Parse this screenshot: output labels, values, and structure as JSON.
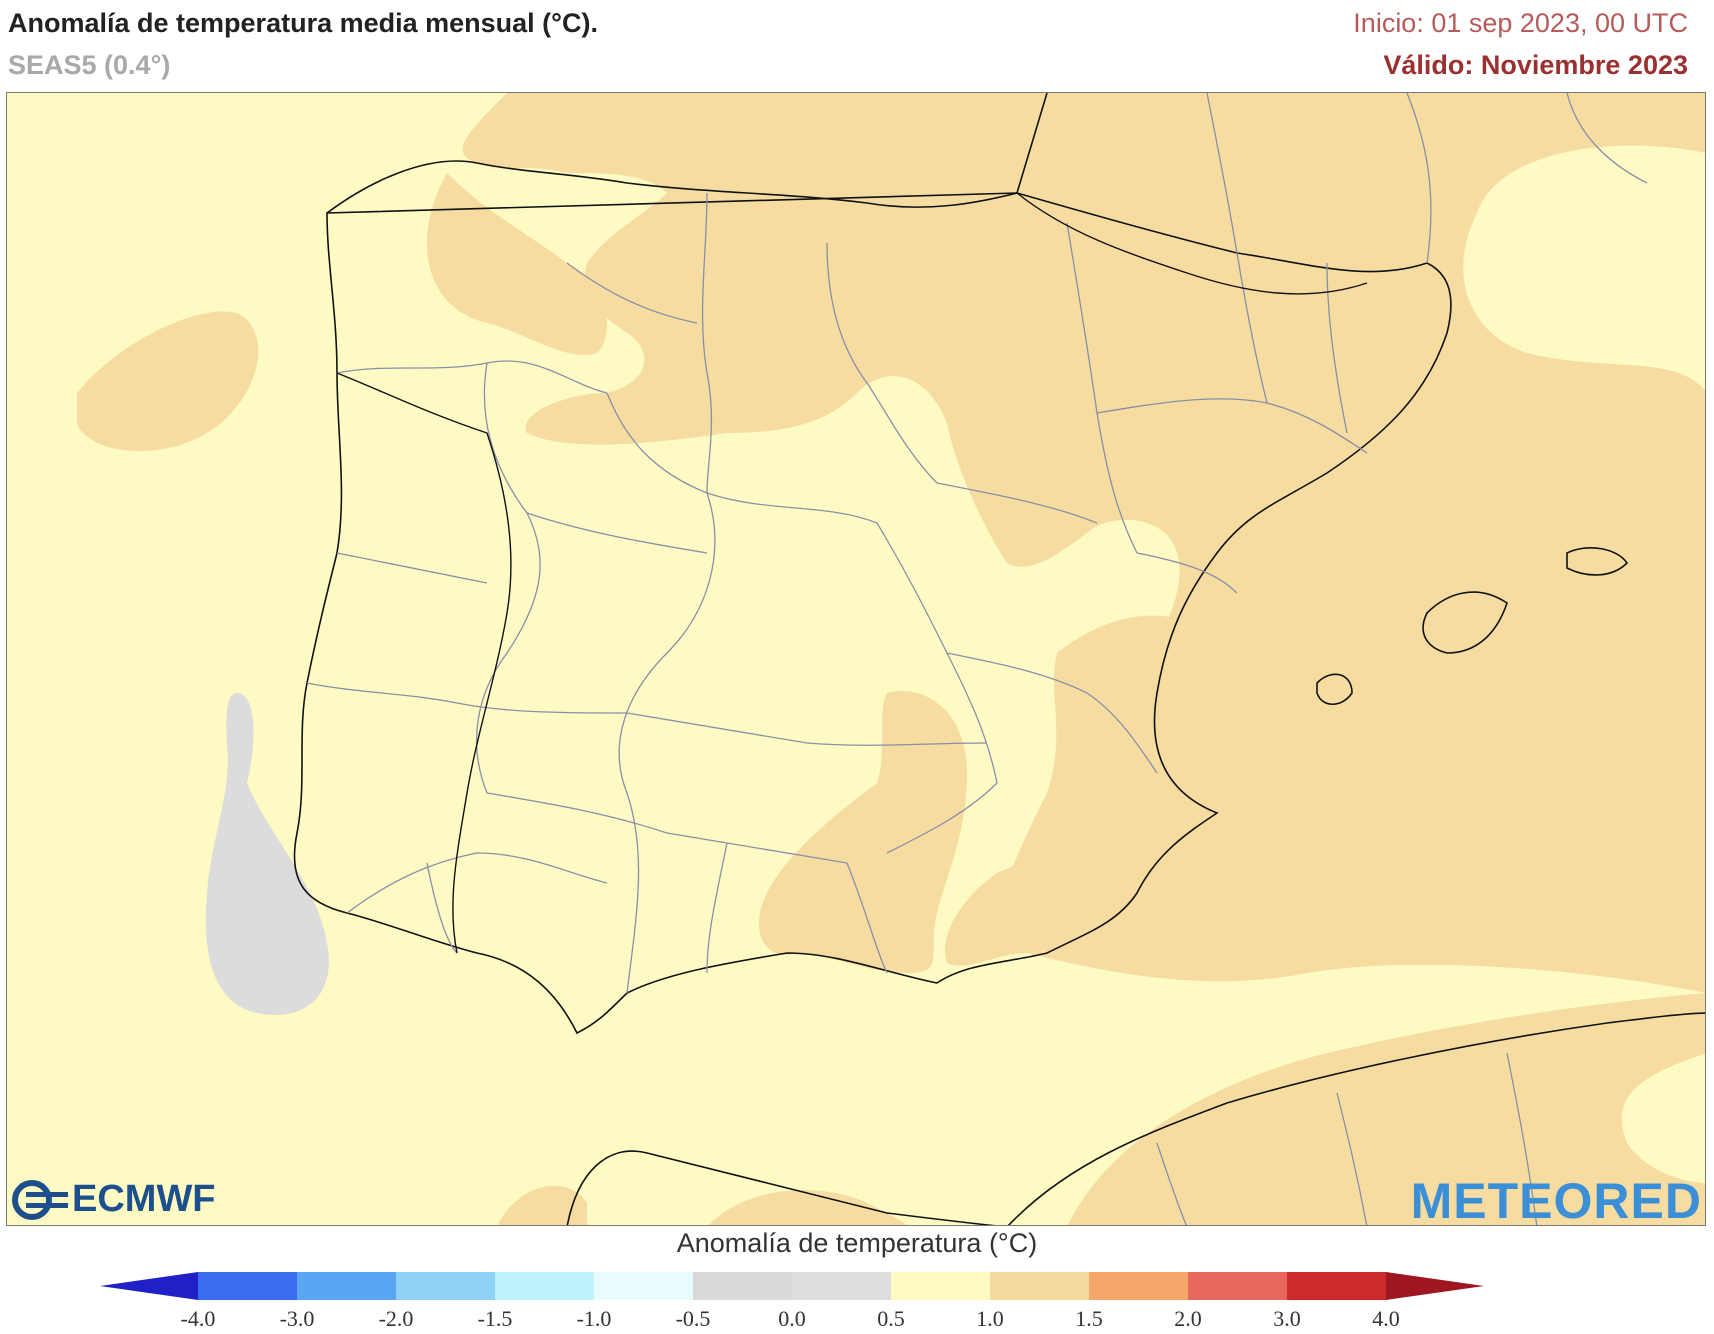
{
  "header": {
    "title": "Anomalía de temperatura media mensual (°C).",
    "model": "SEAS5 (0.4°)",
    "init": "Inicio: 01 sep 2023, 00 UTC",
    "valid": "Válido: Noviembre 2023"
  },
  "logos": {
    "left": "ECMWF",
    "right": "METEORED"
  },
  "legend": {
    "title": "Anomalía de temperatura (°C)",
    "ticks": [
      "-4.0",
      "-3.0",
      "-2.0",
      "-1.5",
      "-1.0",
      "-0.5",
      "0.0",
      "0.5",
      "1.0",
      "1.5",
      "2.0",
      "3.0",
      "4.0"
    ],
    "colors": [
      "#2020c8",
      "#3a6cf0",
      "#5aa6f2",
      "#8ed3f7",
      "#bff3fb",
      "#e8fcfe",
      "#d9d9d9",
      "#dddddd",
      "#fef9c0",
      "#f5d99e",
      "#f4a66b",
      "#e8675c",
      "#cc2b2b",
      "#9e1620"
    ]
  },
  "map_colors": {
    "anomaly_05_10": "#fefac4",
    "anomaly_10_15": "#f6dca0",
    "anomaly_00_05": "#dcdcdc",
    "borders": "#8a8fa8",
    "coast": "#111111"
  }
}
